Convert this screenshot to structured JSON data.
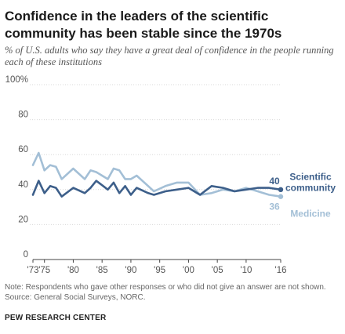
{
  "title": "Confidence in the leaders of the scientific community has been stable since the 1970s",
  "subtitle": "% of U.S. adults who say they have a great deal of confidence in the people running each of these institutions",
  "note": "Note: Respondents who gave other responses or who did not give an answer are not shown.\nSource: General Social Surveys, NORC.",
  "brand": "PEW RESEARCH CENTER",
  "colors": {
    "scientific": "#3d5f8a",
    "medicine": "#a3bfd6"
  },
  "chart_data": {
    "type": "line",
    "ylim": [
      0,
      100
    ],
    "xlim": [
      1973,
      2016
    ],
    "y_ticks": [
      0,
      20,
      40,
      60,
      80,
      100
    ],
    "y_tick_labels": [
      "0",
      "20",
      "40",
      "60",
      "80",
      "100%"
    ],
    "x_ticks": [
      1973,
      1975,
      1980,
      1985,
      1990,
      1995,
      2000,
      2005,
      2010,
      2016
    ],
    "x_tick_labels": [
      "'73",
      "'75",
      "'80",
      "'85",
      "'90",
      "'95",
      "'00",
      "'05",
      "'10",
      "'16"
    ],
    "series": [
      {
        "name": "Scientific community",
        "label_lines": [
          "Scientific",
          "community"
        ],
        "end_label": "40",
        "color": "#3d5f8a",
        "points": [
          [
            1973,
            37
          ],
          [
            1974,
            45
          ],
          [
            1975,
            38
          ],
          [
            1976,
            42
          ],
          [
            1977,
            41
          ],
          [
            1978,
            36
          ],
          [
            1980,
            41
          ],
          [
            1982,
            38
          ],
          [
            1983,
            41
          ],
          [
            1984,
            45
          ],
          [
            1986,
            40
          ],
          [
            1987,
            44
          ],
          [
            1988,
            38
          ],
          [
            1989,
            42
          ],
          [
            1990,
            37
          ],
          [
            1991,
            41
          ],
          [
            1993,
            38
          ],
          [
            1994,
            37
          ],
          [
            1996,
            39
          ],
          [
            1998,
            40
          ],
          [
            2000,
            41
          ],
          [
            2002,
            37
          ],
          [
            2004,
            42
          ],
          [
            2006,
            41
          ],
          [
            2008,
            39
          ],
          [
            2010,
            40
          ],
          [
            2012,
            41
          ],
          [
            2014,
            41
          ],
          [
            2016,
            40
          ]
        ]
      },
      {
        "name": "Medicine",
        "label_lines": [
          "Medicine"
        ],
        "end_label": "36",
        "color": "#a3bfd6",
        "points": [
          [
            1973,
            54
          ],
          [
            1974,
            61
          ],
          [
            1975,
            51
          ],
          [
            1976,
            54
          ],
          [
            1977,
            53
          ],
          [
            1978,
            46
          ],
          [
            1980,
            52
          ],
          [
            1982,
            46
          ],
          [
            1983,
            51
          ],
          [
            1984,
            50
          ],
          [
            1986,
            46
          ],
          [
            1987,
            52
          ],
          [
            1988,
            51
          ],
          [
            1989,
            46
          ],
          [
            1990,
            46
          ],
          [
            1991,
            48
          ],
          [
            1993,
            42
          ],
          [
            1994,
            39
          ],
          [
            1996,
            42
          ],
          [
            1998,
            44
          ],
          [
            2000,
            44
          ],
          [
            2002,
            37
          ],
          [
            2004,
            38
          ],
          [
            2006,
            40
          ],
          [
            2008,
            39
          ],
          [
            2010,
            41
          ],
          [
            2012,
            39
          ],
          [
            2014,
            37
          ],
          [
            2016,
            36
          ]
        ]
      }
    ]
  }
}
